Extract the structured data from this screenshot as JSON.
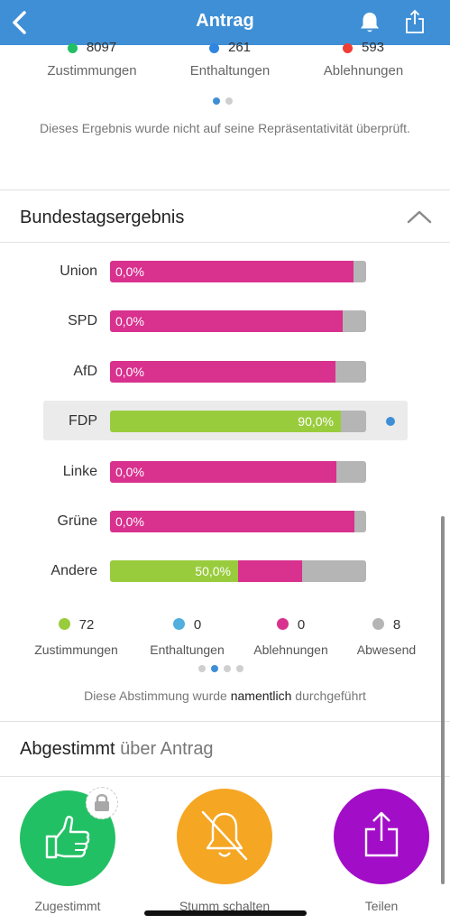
{
  "header": {
    "title": "Antrag"
  },
  "citizen_result": {
    "legend": [
      {
        "value": "8097",
        "label": "Zustimmungen",
        "color": "#22c064"
      },
      {
        "value": "261",
        "label": "Enthaltungen",
        "color": "#2f86e0"
      },
      {
        "value": "593",
        "label": "Ablehnungen",
        "color": "#ef3e36"
      }
    ],
    "page_active": 0,
    "page_count": 2,
    "note": "Dieses Ergebnis wurde nicht auf seine Repräsentativität überprüft."
  },
  "bundestag": {
    "title": "Bundestagsergebnis",
    "colors": {
      "yes": "#99cc3d",
      "no": "#d8318e",
      "absent": "#b5b5b5",
      "highlight_dot": "#3f8fd6"
    },
    "parties": [
      {
        "name": "Union",
        "yes": 0.0,
        "no": 0.95,
        "label": "0,0%"
      },
      {
        "name": "SPD",
        "yes": 0.0,
        "no": 0.91,
        "label": "0,0%"
      },
      {
        "name": "AfD",
        "yes": 0.0,
        "no": 0.88,
        "label": "0,0%"
      },
      {
        "name": "FDP",
        "yes": 0.9,
        "no": 0.0,
        "label": "90,0%",
        "highlighted": true
      },
      {
        "name": "Linke",
        "yes": 0.0,
        "no": 0.885,
        "label": "0,0%"
      },
      {
        "name": "Grüne",
        "yes": 0.0,
        "no": 0.955,
        "label": "0,0%"
      },
      {
        "name": "Andere",
        "yes": 0.5,
        "no": 0.25,
        "label": "50,0%"
      }
    ],
    "legend": [
      {
        "value": "72",
        "label": "Zustimmungen",
        "color": "#99cc3d"
      },
      {
        "value": "0",
        "label": "Enthaltungen",
        "color": "#52aedc"
      },
      {
        "value": "0",
        "label": "Ablehnungen",
        "color": "#d8318e"
      },
      {
        "value": "8",
        "label": "Abwesend",
        "color": "#b5b5b5"
      }
    ],
    "page_active": 1,
    "page_count": 4,
    "note_before": "Diese Abstimmung wurde ",
    "note_bold": "namentlich",
    "note_after": " durchgeführt"
  },
  "vote": {
    "title": "Abgestimmt",
    "subtitle": " über Antrag",
    "actions": [
      {
        "label": "Zugestimmt",
        "color": "#22c064",
        "icon": "thumbs-up-icon"
      },
      {
        "label": "Stumm schalten",
        "color": "#f5a623",
        "icon": "bell-off-icon"
      },
      {
        "label": "Teilen",
        "color": "#a20dc8",
        "icon": "share-icon"
      }
    ]
  }
}
